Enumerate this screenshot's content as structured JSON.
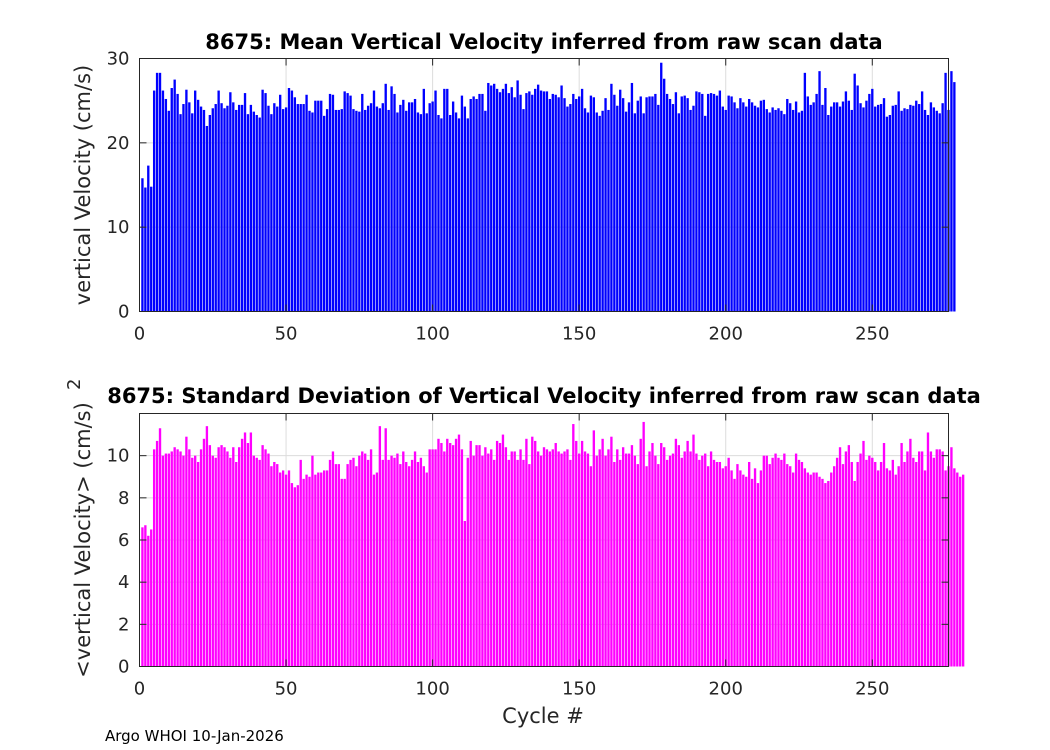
{
  "footer_text": "Argo WHOI 10-Jan-2026",
  "chart_data": [
    {
      "type": "bar",
      "title": "8675: Mean Vertical Velocity inferred from raw scan data",
      "xlabel": "",
      "ylabel": "vertical Velocity (cm/s)",
      "xlim": [
        0,
        276
      ],
      "ylim": [
        0,
        30
      ],
      "xticks": [
        0,
        50,
        100,
        150,
        200,
        250
      ],
      "yticks": [
        0,
        10,
        20,
        30
      ],
      "grid": true,
      "color": "#0000ff",
      "x_start": 1,
      "values": [
        15.8,
        14.7,
        17.3,
        14.8,
        26.2,
        28.3,
        28.3,
        26.2,
        25.2,
        23.8,
        26.5,
        27.5,
        25.8,
        23.4,
        24.6,
        26.3,
        24.8,
        23.5,
        26.2,
        25.1,
        24.3,
        23.9,
        22.0,
        23.3,
        24.1,
        24.6,
        26.2,
        24.7,
        24.1,
        24.4,
        26.0,
        24.8,
        23.9,
        24.5,
        24.5,
        25.9,
        23.4,
        24.5,
        23.7,
        23.3,
        23.0,
        26.3,
        25.9,
        24.4,
        23.4,
        24.7,
        24.3,
        25.7,
        24.0,
        24.2,
        26.5,
        26.2,
        25.4,
        24.6,
        24.6,
        24.6,
        25.7,
        23.8,
        23.6,
        25.0,
        25.0,
        25.0,
        23.2,
        24.0,
        25.8,
        25.7,
        23.9,
        23.9,
        24.0,
        26.1,
        25.9,
        25.6,
        24.0,
        23.8,
        23.7,
        25.8,
        23.9,
        24.4,
        24.7,
        26.2,
        24.3,
        24.1,
        24.7,
        27.0,
        23.9,
        26.7,
        25.8,
        23.6,
        24.5,
        25.1,
        23.8,
        24.8,
        24.8,
        25.2,
        23.6,
        23.4,
        26.4,
        23.5,
        24.7,
        24.9,
        26.2,
        23.3,
        22.9,
        26.4,
        26.4,
        23.3,
        24.9,
        23.6,
        22.9,
        25.6,
        24.3,
        22.9,
        25.2,
        25.5,
        25.2,
        25.8,
        25.8,
        23.8,
        27.1,
        26.8,
        27.0,
        26.4,
        26.0,
        26.4,
        27.0,
        25.9,
        26.6,
        25.4,
        27.4,
        25.7,
        24.0,
        25.9,
        26.1,
        25.7,
        26.4,
        26.9,
        26.2,
        26.1,
        26.1,
        25.2,
        25.8,
        25.7,
        25.4,
        26.8,
        25.3,
        24.3,
        24.6,
        25.8,
        25.2,
        25.5,
        26.4,
        24.1,
        23.6,
        25.6,
        25.4,
        23.6,
        23.2,
        23.8,
        25.3,
        23.9,
        27.0,
        25.7,
        24.4,
        26.3,
        25.3,
        23.7,
        24.8,
        27.1,
        23.5,
        25.0,
        25.5,
        23.5,
        25.4,
        25.5,
        25.5,
        25.8,
        24.5,
        29.5,
        27.6,
        25.8,
        25.2,
        24.6,
        26.0,
        23.5,
        25.5,
        25.6,
        25.3,
        23.9,
        24.4,
        26.1,
        26.0,
        25.8,
        23.2,
        25.8,
        25.9,
        25.8,
        25.6,
        26.2,
        24.3,
        23.9,
        25.6,
        25.5,
        24.8,
        24.1,
        25.3,
        24.8,
        24.3,
        25.2,
        24.8,
        24.4,
        24.2,
        25.0,
        25.1,
        24.0,
        23.6,
        24.2,
        23.9,
        24.1,
        23.8,
        23.4,
        25.2,
        24.7,
        23.9,
        24.9,
        23.6,
        23.8,
        28.3,
        25.5,
        24.5,
        24.8,
        25.8,
        28.5,
        24.5,
        26.5,
        23.3,
        24.3,
        24.8,
        24.8,
        24.3,
        24.9,
        26.1,
        25.0,
        23.9,
        28.2,
        26.8,
        24.7,
        24.2,
        25.0,
        25.8,
        26.4,
        24.3,
        24.5,
        24.6,
        25.3,
        23.1,
        23.3,
        24.4,
        24.5,
        26.1,
        23.8,
        24.1,
        24.0,
        24.5,
        24.4,
        25.0,
        24.6,
        26.1,
        23.9,
        23.3,
        24.8,
        24.2,
        23.8,
        23.5,
        24.7,
        28.3,
        23.9,
        28.5,
        27.2
      ]
    },
    {
      "type": "bar",
      "title": "8675: Standard Deviation of Vertical Velocity inferred from raw scan data",
      "xlabel": "Cycle #",
      "ylabel": "<vertical Velocity> (cm/s)",
      "ylabel_superscript": "2",
      "xlim": [
        0,
        276
      ],
      "ylim": [
        0,
        12
      ],
      "xticks": [
        0,
        50,
        100,
        150,
        200,
        250
      ],
      "yticks": [
        0,
        2,
        4,
        6,
        8,
        10
      ],
      "grid": true,
      "color": "#ff00ff",
      "x_start": 1,
      "values": [
        6.6,
        6.7,
        6.2,
        6.5,
        10.3,
        10.7,
        11.3,
        10.0,
        10.1,
        10.1,
        10.2,
        10.4,
        10.3,
        10.2,
        10.0,
        10.9,
        10.3,
        9.9,
        10.0,
        9.7,
        10.3,
        10.8,
        11.4,
        10.5,
        10.0,
        9.9,
        10.4,
        10.5,
        10.4,
        10.2,
        9.9,
        10.4,
        9.7,
        10.4,
        10.8,
        11.1,
        10.6,
        11.1,
        10.0,
        9.9,
        9.8,
        10.5,
        10.3,
        10.1,
        9.5,
        9.7,
        9.6,
        9.2,
        9.3,
        9.1,
        9.3,
        8.7,
        8.5,
        8.6,
        9.8,
        8.9,
        9.1,
        9.0,
        10.0,
        9.1,
        9.2,
        9.2,
        9.3,
        9.3,
        9.8,
        10.2,
        9.6,
        9.6,
        8.9,
        8.9,
        9.6,
        9.8,
        9.9,
        9.5,
        10.0,
        10.2,
        10.1,
        9.8,
        10.3,
        9.1,
        9.2,
        11.4,
        9.8,
        11.3,
        9.8,
        10.0,
        9.9,
        10.1,
        9.6,
        10.2,
        9.7,
        9.5,
        9.8,
        10.2,
        9.7,
        9.9,
        9.5,
        9.2,
        10.3,
        10.3,
        10.3,
        10.8,
        10.6,
        10.2,
        10.8,
        10.6,
        10.5,
        10.8,
        11.0,
        10.3,
        6.9,
        9.9,
        10.7,
        10.0,
        10.5,
        10.5,
        10.0,
        10.4,
        10.1,
        10.3,
        9.8,
        10.7,
        10.6,
        11.0,
        10.4,
        9.8,
        10.2,
        10.2,
        9.8,
        10.3,
        9.8,
        10.8,
        9.6,
        10.9,
        10.7,
        10.2,
        10.0,
        10.4,
        10.3,
        10.2,
        10.3,
        10.6,
        10.2,
        10.1,
        10.2,
        10.3,
        9.8,
        11.5,
        10.7,
        10.1,
        10.7,
        10.2,
        10.1,
        9.5,
        11.2,
        10.0,
        10.3,
        10.8,
        10.0,
        10.3,
        10.9,
        9.7,
        10.3,
        9.8,
        10.4,
        10.1,
        10.1,
        10.5,
        10.0,
        9.6,
        10.8,
        11.6,
        9.5,
        10.2,
        10.6,
        10.0,
        9.6,
        10.6,
        10.4,
        9.8,
        10.0,
        10.1,
        10.8,
        10.5,
        9.9,
        10.2,
        10.7,
        10.2,
        11.0,
        10.1,
        9.8,
        10.0,
        10.1,
        9.5,
        10.2,
        9.8,
        9.7,
        9.7,
        9.4,
        9.5,
        9.9,
        9.3,
        8.9,
        9.6,
        9.3,
        9.1,
        9.0,
        9.7,
        8.9,
        9.4,
        8.7,
        9.3,
        10.0,
        10.0,
        9.6,
        9.9,
        10.1,
        9.9,
        9.8,
        10.1,
        9.6,
        9.5,
        9.2,
        10.1,
        9.8,
        9.7,
        9.4,
        9.2,
        9.1,
        9.2,
        9.2,
        9.0,
        8.9,
        8.7,
        8.8,
        9.2,
        9.5,
        9.9,
        10.4,
        9.6,
        10.2,
        10.5,
        9.7,
        8.8,
        9.7,
        10.1,
        10.7,
        9.8,
        10.0,
        9.9,
        9.7,
        9.3,
        9.7,
        10.6,
        9.4,
        9.3,
        9.8,
        9.1,
        9.5,
        10.6,
        9.7,
        10.2,
        10.8,
        9.9,
        9.7,
        10.2,
        10.2,
        9.3,
        11.1,
        10.2,
        9.9,
        10.3,
        10.3,
        10.2,
        9.3,
        9.5,
        10.4,
        9.4,
        9.2,
        9.0,
        9.1
      ]
    }
  ]
}
